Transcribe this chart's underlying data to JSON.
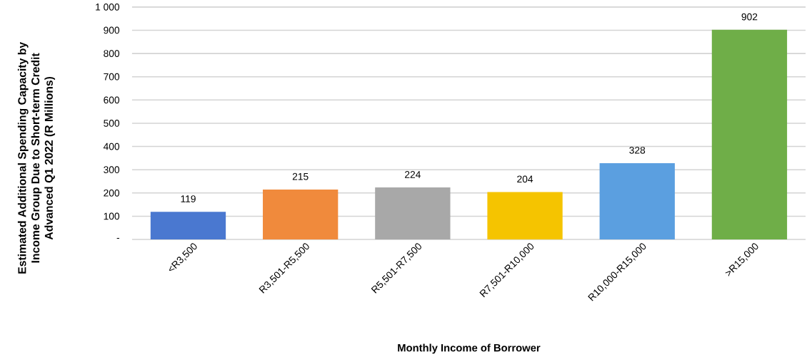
{
  "chart_data": {
    "type": "bar",
    "xlabel": "Monthly Income of Borrower",
    "ylabel": "Estimated Additional Spending Capacity by Income Group Due to Short-term Credit Advanced Q1 2022 (R Millions)",
    "categories": [
      "<R3,500",
      "R3,501-R5,500",
      "R5,501-R7,500",
      "R7,501-R10,000",
      "R10,000-R15,000",
      ">R15,000"
    ],
    "values": [
      119,
      215,
      224,
      204,
      328,
      902
    ],
    "colors": [
      "#4a78d0",
      "#f08a3c",
      "#a8a8a8",
      "#f5c400",
      "#5b9fe0",
      "#6fae48"
    ],
    "ylim": [
      0,
      1000
    ],
    "yticks": [
      {
        "value": 0,
        "label": "-"
      },
      100,
      200,
      300,
      400,
      500,
      600,
      700,
      800,
      900,
      {
        "value": 1000,
        "label": "1 000"
      }
    ],
    "grid": "y",
    "data_labels": true
  }
}
